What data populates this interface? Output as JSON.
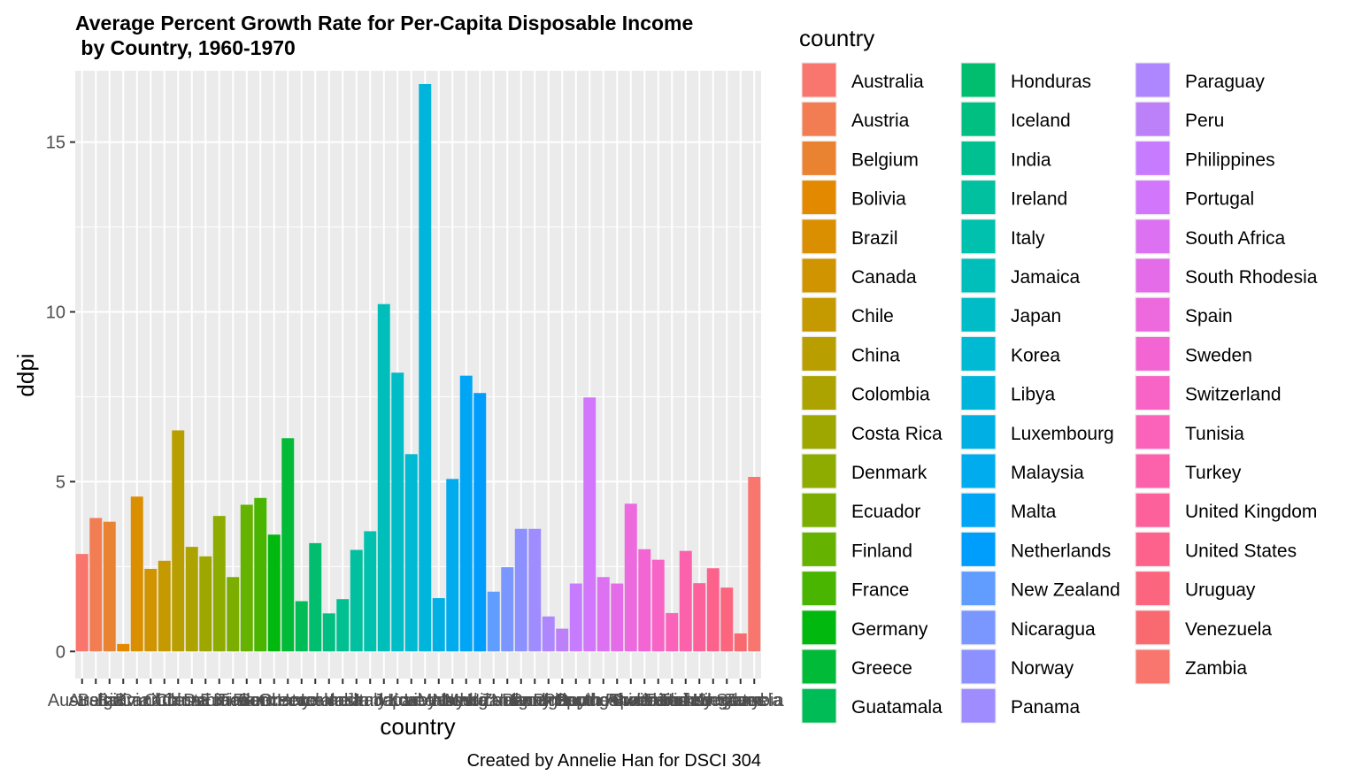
{
  "chart_data": {
    "type": "bar",
    "title_line1": "Average Percent Growth Rate for Per-Capita Disposable Income",
    "title_line2": " by Country, 1960-1970",
    "xlabel": "country",
    "ylabel": "ddpi",
    "caption": "Created by Annelie Han for DSCI 304",
    "legend_title": "country",
    "legend_position": "right",
    "grid": true,
    "ylim": [
      -0.8,
      17.1
    ],
    "yticks": [
      0,
      5,
      10,
      15
    ],
    "ytick_labels": [
      "0",
      "5",
      "10",
      "15"
    ],
    "categories": [
      "Australia",
      "Austria",
      "Belgium",
      "Bolivia",
      "Brazil",
      "Canada",
      "Chile",
      "China",
      "Colombia",
      "Costa Rica",
      "Denmark",
      "Ecuador",
      "Finland",
      "France",
      "Germany",
      "Greece",
      "Guatamala",
      "Honduras",
      "Iceland",
      "India",
      "Ireland",
      "Italy",
      "Jamaica",
      "Japan",
      "Korea",
      "Libya",
      "Luxembourg",
      "Malaysia",
      "Malta",
      "Netherlands",
      "New Zealand",
      "Nicaragua",
      "Norway",
      "Panama",
      "Paraguay",
      "Peru",
      "Philippines",
      "Portugal",
      "South Africa",
      "South Rhodesia",
      "Spain",
      "Sweden",
      "Switzerland",
      "Tunisia",
      "Turkey",
      "United Kingdom",
      "United States",
      "Uruguay",
      "Venezuela",
      "Zambia"
    ],
    "values": [
      2.87,
      3.93,
      3.82,
      0.22,
      4.56,
      2.43,
      2.67,
      6.51,
      3.08,
      2.8,
      3.99,
      2.19,
      4.32,
      4.52,
      3.44,
      6.28,
      1.48,
      3.19,
      1.12,
      1.54,
      2.99,
      3.54,
      10.23,
      8.21,
      5.81,
      16.71,
      1.57,
      5.08,
      8.12,
      7.61,
      1.76,
      2.48,
      3.61,
      3.61,
      1.03,
      0.67,
      2.0,
      7.48,
      2.19,
      2.0,
      4.35,
      3.01,
      2.7,
      1.13,
      2.96,
      2.01,
      2.45,
      1.88,
      0.53,
      5.14
    ],
    "colors": [
      "#F8766D",
      "#F27D53",
      "#EA8331",
      "#E38900",
      "#DA8F00",
      "#D09400",
      "#C59900",
      "#B99E00",
      "#ACA300",
      "#9EA700",
      "#8EAB00",
      "#7CAE00",
      "#65B200",
      "#49B500",
      "#00B80E",
      "#00BA38",
      "#00BC56",
      "#00BE6D",
      "#00BF80",
      "#00C091",
      "#00C0A0",
      "#00C1AE",
      "#00BFBB",
      "#00BCC6",
      "#00B9D2",
      "#00B5DC",
      "#00B0E5",
      "#00ABEE",
      "#00A5F5",
      "#009EFC",
      "#619CFF",
      "#7997FF",
      "#8D91FF",
      "#9F8CFF",
      "#AE87FF",
      "#BC81F8",
      "#C77CFF",
      "#D277FB",
      "#DC71F1",
      "#E46CE8",
      "#EC69DE",
      "#F265D3",
      "#F764C6",
      "#FA63B9",
      "#FC61AB",
      "#FD619C",
      "#FD628D",
      "#FB657E",
      "#F96A70",
      "#F8766D"
    ]
  }
}
